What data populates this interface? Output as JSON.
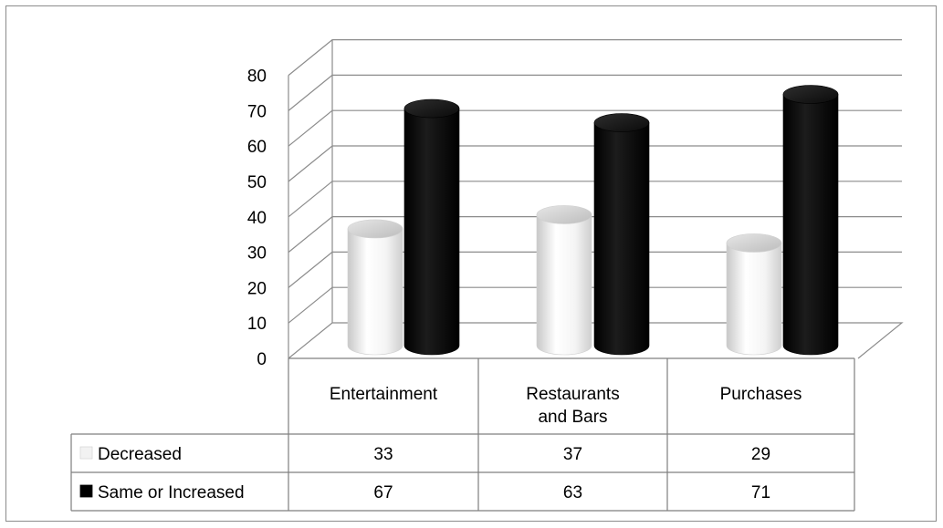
{
  "chart_data": {
    "type": "bar",
    "variant": "3d-cylinder-with-data-table",
    "categories": [
      "Entertainment",
      "Restaurants and Bars",
      "Purchases"
    ],
    "category_label_lines": [
      [
        "Entertainment"
      ],
      [
        "Restaurants",
        "and Bars"
      ],
      [
        "Purchases"
      ]
    ],
    "series": [
      {
        "name": "Decreased",
        "values": [
          33,
          37,
          29
        ],
        "color": "#f2f2f2"
      },
      {
        "name": "Same or Increased",
        "values": [
          67,
          63,
          71
        ],
        "color": "#000000"
      }
    ],
    "y_ticks": [
      "0",
      "10",
      "20",
      "30",
      "40",
      "50",
      "60",
      "70",
      "80"
    ],
    "ylim": [
      0,
      80
    ],
    "grid": true,
    "legend": "data-table",
    "title": "",
    "xlabel": "",
    "ylabel": ""
  },
  "colors": {
    "gridline": "#8c8c8c",
    "frame": "#8c8c8c",
    "table_border": "#7f7f7f"
  }
}
